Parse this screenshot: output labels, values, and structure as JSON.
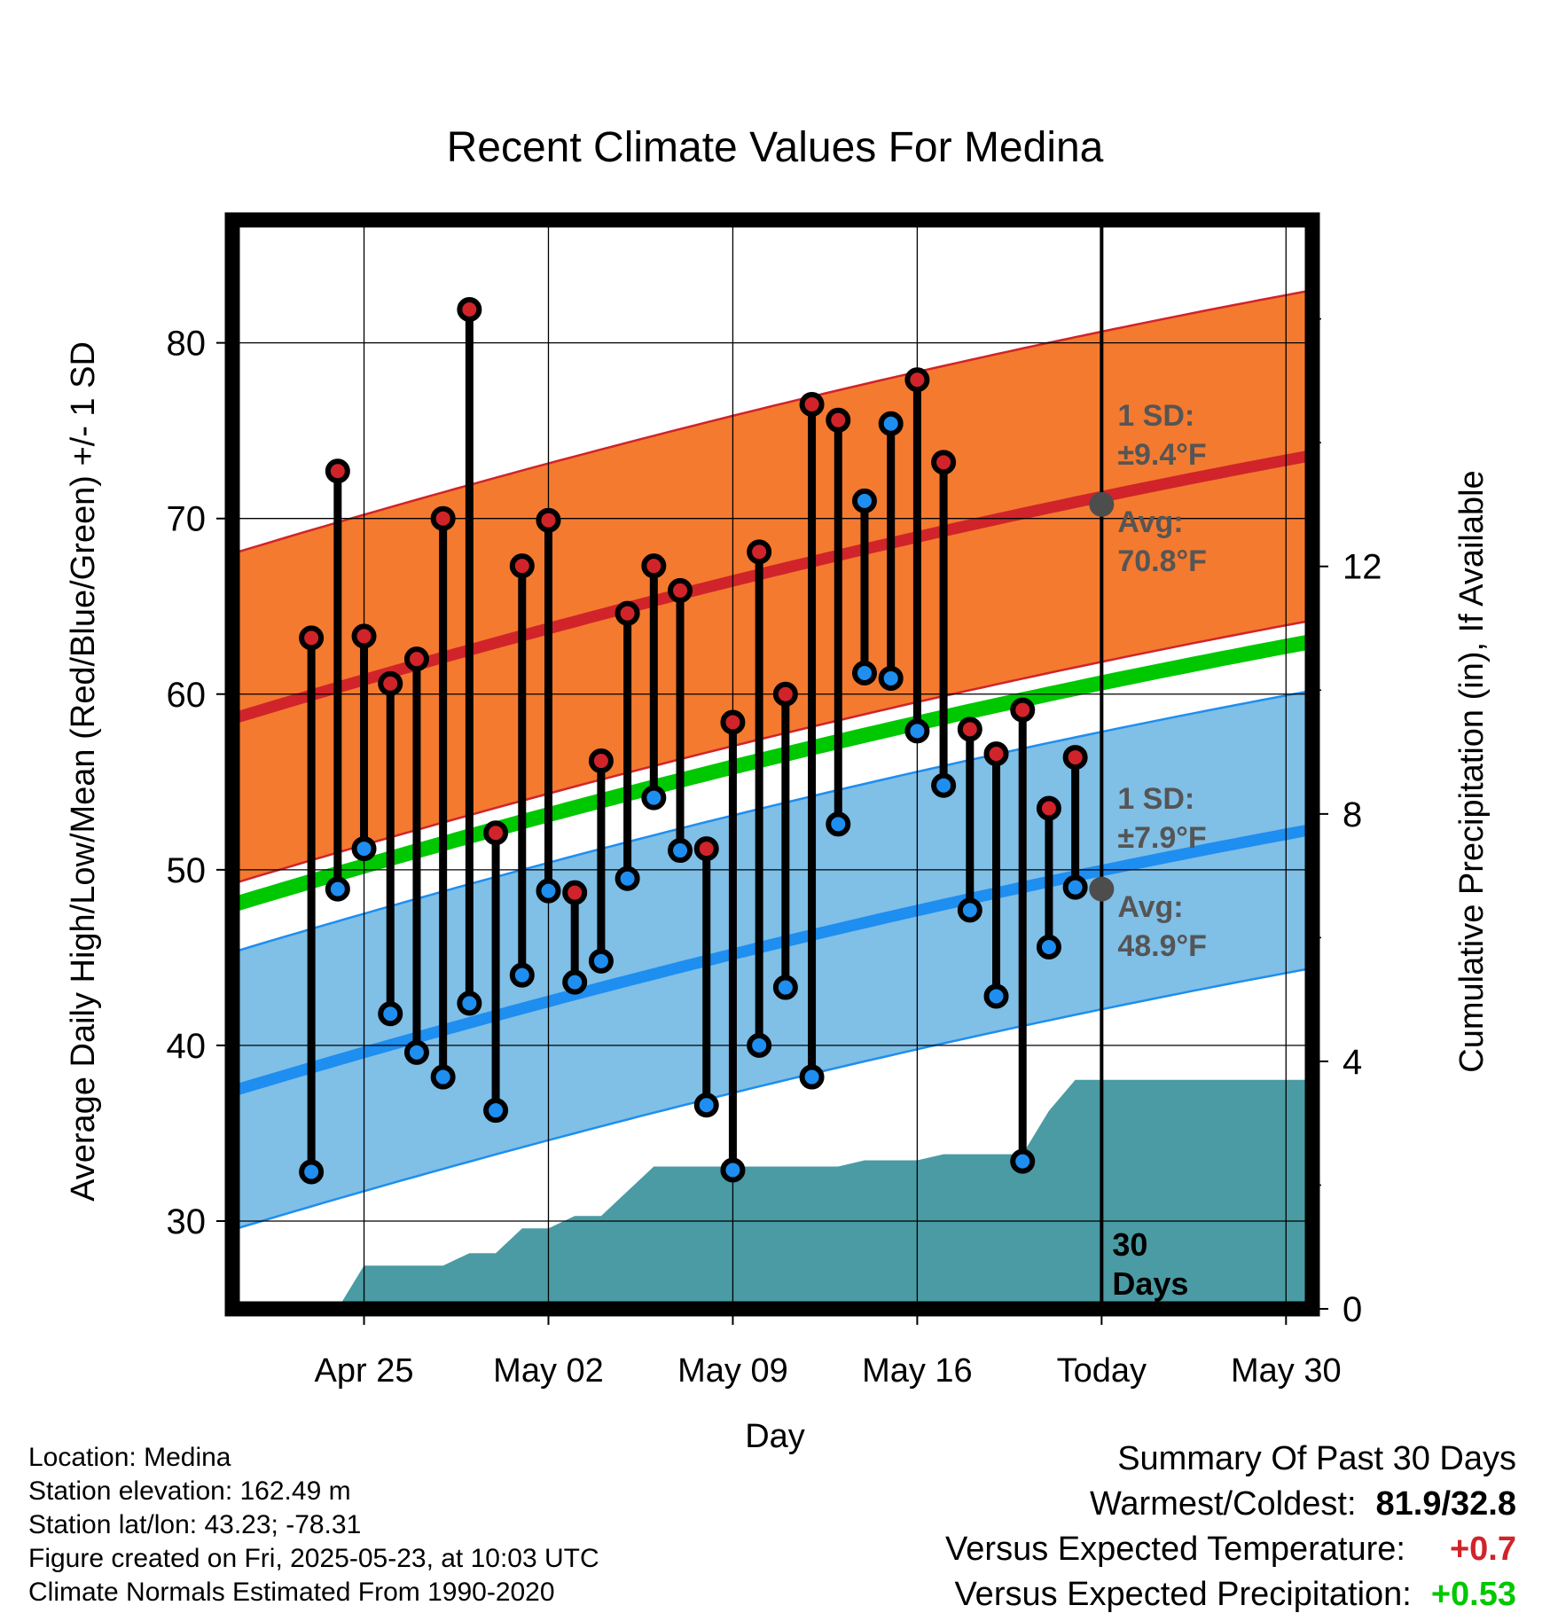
{
  "title": "Recent Climate Values For Medina",
  "xlabel": "Day",
  "ylabel_left": "Average Daily High/Low/Mean (Red/Blue/Green) +/- 1 SD",
  "ylabel_right": "Cumulative Precipitation (in), If Available",
  "chart_data": {
    "type": "line",
    "x_ticks": [
      "Apr 25",
      "May 02",
      "May 09",
      "May 16",
      "Today",
      "May 30"
    ],
    "x_range_days": [
      -33,
      8
    ],
    "x_unit": "days relative to Today (May 23)",
    "y_range": [
      25,
      87
    ],
    "y_ticks": [
      30,
      40,
      50,
      60,
      70,
      80
    ],
    "y2_range": [
      0,
      17.6
    ],
    "y2_ticks": [
      0,
      4,
      8,
      12
    ],
    "grid": true,
    "daily_highs": [
      63.2,
      72.7,
      63.3,
      60.6,
      62.0,
      70.0,
      81.9,
      52.1,
      67.3,
      69.9,
      48.7,
      56.2,
      64.6,
      67.3,
      65.9,
      51.2,
      58.4,
      68.1,
      60.0,
      76.5,
      75.6,
      71.0,
      75.4,
      77.9,
      73.2,
      58.0,
      56.6,
      59.1,
      53.5,
      56.4
    ],
    "daily_lows": [
      32.8,
      48.9,
      51.2,
      41.8,
      39.6,
      38.2,
      42.4,
      36.3,
      44.0,
      48.8,
      43.6,
      44.8,
      49.5,
      54.1,
      51.1,
      36.6,
      32.9,
      40.0,
      43.3,
      38.2,
      52.6,
      61.2,
      60.9,
      57.9,
      54.8,
      47.7,
      42.8,
      33.4,
      45.6,
      49.0
    ],
    "high_day_markers": [
      "red",
      "red",
      "red",
      "red",
      "red",
      "red",
      "red",
      "red",
      "red",
      "red",
      "red",
      "red",
      "red",
      "red",
      "red",
      "red",
      "red",
      "red",
      "red",
      "red",
      "red",
      "blue",
      "blue",
      "red",
      "red",
      "red",
      "red",
      "red",
      "red",
      "red"
    ],
    "low_day_markers": [
      "blue",
      "blue",
      "blue",
      "blue",
      "blue",
      "blue",
      "blue",
      "blue",
      "blue",
      "blue",
      "blue",
      "blue",
      "blue",
      "blue",
      "blue",
      "blue",
      "blue",
      "blue",
      "blue",
      "blue",
      "blue",
      "blue",
      "blue",
      "blue",
      "blue",
      "blue",
      "blue",
      "blue",
      "blue",
      "blue"
    ],
    "normal_high": {
      "start": 58.6,
      "end": 73.6
    },
    "normal_low": {
      "start": 37.4,
      "end": 52.3
    },
    "normal_mean": {
      "start": 48.0,
      "end": 63.0
    },
    "high_sd": 9.4,
    "low_sd": 7.9,
    "cumulative_precip": [
      {
        "day": -33,
        "in": 0.0
      },
      {
        "day": -29,
        "in": 0.0
      },
      {
        "day": -28,
        "in": 0.7
      },
      {
        "day": -25,
        "in": 0.7
      },
      {
        "day": -24,
        "in": 0.9
      },
      {
        "day": -23,
        "in": 0.9
      },
      {
        "day": -22,
        "in": 1.3
      },
      {
        "day": -21,
        "in": 1.3
      },
      {
        "day": -20,
        "in": 1.5
      },
      {
        "day": -19,
        "in": 1.5
      },
      {
        "day": -17,
        "in": 2.3
      },
      {
        "day": -10,
        "in": 2.3
      },
      {
        "day": -9,
        "in": 2.4
      },
      {
        "day": -7,
        "in": 2.4
      },
      {
        "day": -6,
        "in": 2.5
      },
      {
        "day": -3,
        "in": 2.5
      },
      {
        "day": -2,
        "in": 3.2
      },
      {
        "day": -1,
        "in": 3.7
      },
      {
        "day": 8,
        "in": 3.7
      }
    ],
    "annotations": {
      "high_sd_label": "1 SD:",
      "high_sd_value": "±9.4°F",
      "high_avg_label": "Avg:",
      "high_avg_value": "70.8°F",
      "low_sd_label": "1 SD:",
      "low_sd_value": "±7.9°F",
      "low_avg_label": "Avg:",
      "low_avg_value": "48.9°F",
      "days_label": "30",
      "days_label2": "Days"
    },
    "today_high_avg": 70.8,
    "today_low_avg": 48.9,
    "colors": {
      "high_band": "#f47a2f",
      "high_line": "#d0242a",
      "low_band": "#80bfe6",
      "low_line": "#1e8ef0",
      "mean_line": "#00c800",
      "precip": "#4a9ba4",
      "high_marker": "#d0242a",
      "low_marker": "#1e8ef0",
      "annotation": "#555555"
    }
  },
  "meta": {
    "location": "Location: Medina",
    "elevation": "Station elevation: 162.49 m",
    "latlon": "Station lat/lon: 43.23; -78.31",
    "created": "Figure created on Fri, 2025-05-23, at 10:03 UTC",
    "normals": "Climate Normals Estimated From 1990-2020"
  },
  "summary": {
    "title": "Summary Of Past 30 Days",
    "warm_cold_label": "Warmest/Coldest:",
    "warm_cold_value": "81.9/32.8",
    "temp_label": "Versus Expected Temperature:",
    "temp_value": "+0.7",
    "temp_color": "#d0242a",
    "precip_label": "Versus Expected Precipitation:",
    "precip_value": "+0.53",
    "precip_color": "#00c800"
  }
}
